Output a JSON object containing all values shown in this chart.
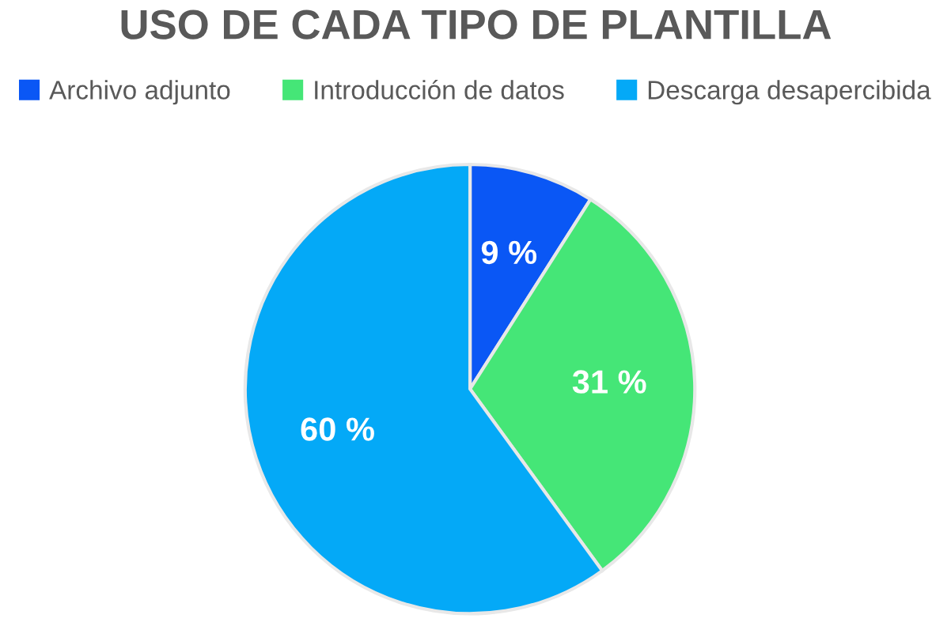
{
  "chart_data": {
    "type": "pie",
    "title": "USO DE CADA TIPO DE PLANTILLA",
    "categories": [
      "Archivo adjunto",
      "Introducción de datos",
      "Descarga desapercibida"
    ],
    "values": [
      9,
      31,
      60
    ],
    "colors": [
      "#0a57f5",
      "#45e677",
      "#04a9f7"
    ],
    "value_labels": [
      "9 %",
      "31 %",
      "60 %"
    ],
    "legend": "top"
  }
}
